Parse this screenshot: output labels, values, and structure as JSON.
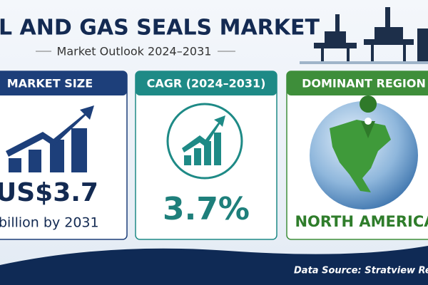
{
  "header": {
    "title": "L AND GAS SEALS MARKET",
    "subtitle": "Market Outlook 2024–2031"
  },
  "cards": [
    {
      "heading": "MARKET SIZE",
      "value": "US$3.7",
      "detail": "billion by 2031"
    },
    {
      "heading": "CAGR (2024–2031)",
      "value": "3.7%"
    },
    {
      "heading": "DOMINANT REGION",
      "value": "NORTH AMERICA"
    }
  ],
  "footer": {
    "source": "Data Source: Stratview Resea"
  }
}
